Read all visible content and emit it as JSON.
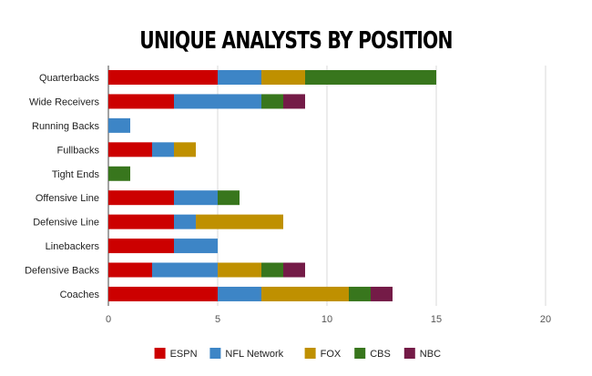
{
  "chart_data": {
    "type": "bar",
    "orientation": "horizontal",
    "stacked": true,
    "title": "UNIQUE ANALYSTS BY POSITION",
    "xlabel": "",
    "ylabel": "",
    "xlim": [
      0,
      20
    ],
    "xticks": [
      "0",
      "5",
      "10",
      "15",
      "20"
    ],
    "grid": true,
    "legend_position": "bottom",
    "categories": [
      "Quarterbacks",
      "Wide Receivers",
      "Running Backs",
      "Fullbacks",
      "Tight Ends",
      "Offensive Line",
      "Defensive Line",
      "Linebackers",
      "Defensive Backs",
      "Coaches"
    ],
    "series": [
      {
        "name": "ESPN",
        "color": "#cc0000",
        "values": [
          5,
          3,
          0,
          2,
          0,
          3,
          3,
          3,
          2,
          5
        ]
      },
      {
        "name": "NFL Network",
        "color": "#3d85c6",
        "values": [
          2,
          4,
          1,
          1,
          0,
          2,
          1,
          2,
          3,
          2
        ]
      },
      {
        "name": "FOX",
        "color": "#bf9000",
        "values": [
          2,
          0,
          0,
          1,
          0,
          0,
          4,
          0,
          2,
          4
        ]
      },
      {
        "name": "CBS",
        "color": "#38761d",
        "values": [
          6,
          1,
          0,
          0,
          1,
          1,
          0,
          0,
          1,
          1
        ]
      },
      {
        "name": "NBC",
        "color": "#741b47",
        "values": [
          0,
          1,
          0,
          0,
          0,
          0,
          0,
          0,
          1,
          1
        ]
      }
    ]
  }
}
